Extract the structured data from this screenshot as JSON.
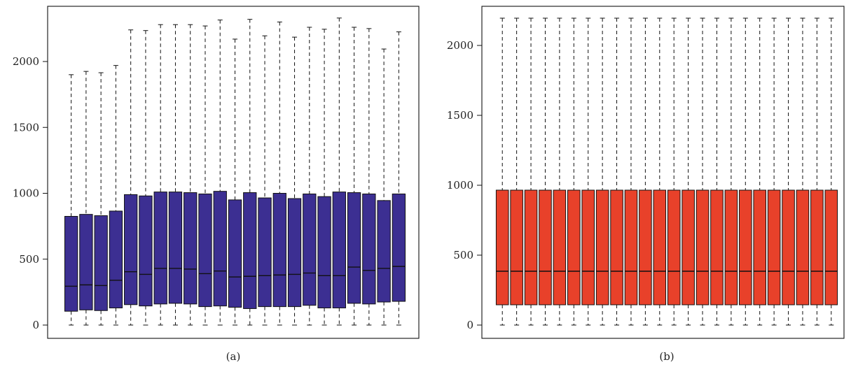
{
  "figure": {
    "panels": [
      {
        "id": "a",
        "caption": "(a)"
      },
      {
        "id": "b",
        "caption": "(b)"
      }
    ]
  },
  "chart_data": [
    {
      "type": "boxplot",
      "panel": "a",
      "caption": "(a)",
      "title": "",
      "xlabel": "",
      "ylabel": "",
      "ylim": [
        0,
        2330
      ],
      "yticks": [
        0,
        500,
        1000,
        1500,
        2000
      ],
      "box_color": "#3c2f92",
      "grid": false,
      "boxes": [
        {
          "min": 0,
          "q1": 105,
          "median": 295,
          "q3": 825,
          "max": 1900
        },
        {
          "min": 0,
          "q1": 115,
          "median": 305,
          "q3": 840,
          "max": 1925
        },
        {
          "min": 0,
          "q1": 110,
          "median": 300,
          "q3": 830,
          "max": 1915
        },
        {
          "min": 0,
          "q1": 130,
          "median": 340,
          "q3": 865,
          "max": 1970
        },
        {
          "min": 0,
          "q1": 155,
          "median": 405,
          "q3": 990,
          "max": 2240
        },
        {
          "min": 0,
          "q1": 145,
          "median": 385,
          "q3": 980,
          "max": 2235
        },
        {
          "min": 0,
          "q1": 160,
          "median": 430,
          "q3": 1010,
          "max": 2280
        },
        {
          "min": 0,
          "q1": 165,
          "median": 430,
          "q3": 1010,
          "max": 2280
        },
        {
          "min": 0,
          "q1": 160,
          "median": 425,
          "q3": 1005,
          "max": 2280
        },
        {
          "min": 0,
          "q1": 140,
          "median": 390,
          "q3": 995,
          "max": 2270
        },
        {
          "min": 0,
          "q1": 145,
          "median": 410,
          "q3": 1015,
          "max": 2315
        },
        {
          "min": 0,
          "q1": 135,
          "median": 365,
          "q3": 950,
          "max": 2170
        },
        {
          "min": 0,
          "q1": 125,
          "median": 370,
          "q3": 1005,
          "max": 2320
        },
        {
          "min": 0,
          "q1": 140,
          "median": 375,
          "q3": 965,
          "max": 2195
        },
        {
          "min": 0,
          "q1": 140,
          "median": 380,
          "q3": 1000,
          "max": 2300
        },
        {
          "min": 0,
          "q1": 140,
          "median": 385,
          "q3": 960,
          "max": 2185
        },
        {
          "min": 0,
          "q1": 150,
          "median": 395,
          "q3": 995,
          "max": 2260
        },
        {
          "min": 0,
          "q1": 130,
          "median": 375,
          "q3": 975,
          "max": 2245
        },
        {
          "min": 0,
          "q1": 130,
          "median": 375,
          "q3": 1010,
          "max": 2330
        },
        {
          "min": 0,
          "q1": 165,
          "median": 440,
          "q3": 1005,
          "max": 2260
        },
        {
          "min": 0,
          "q1": 160,
          "median": 415,
          "q3": 995,
          "max": 2250
        },
        {
          "min": 0,
          "q1": 175,
          "median": 430,
          "q3": 945,
          "max": 2095
        },
        {
          "min": 0,
          "q1": 180,
          "median": 445,
          "q3": 995,
          "max": 2225
        }
      ]
    },
    {
      "type": "boxplot",
      "panel": "b",
      "caption": "(b)",
      "title": "",
      "xlabel": "",
      "ylabel": "",
      "ylim": [
        0,
        2200
      ],
      "yticks": [
        0,
        500,
        1000,
        1500,
        2000
      ],
      "box_color": "#e8412a",
      "grid": false,
      "boxes": [
        {
          "min": 0,
          "q1": 145,
          "median": 385,
          "q3": 965,
          "max": 2195
        },
        {
          "min": 0,
          "q1": 145,
          "median": 385,
          "q3": 965,
          "max": 2195
        },
        {
          "min": 0,
          "q1": 145,
          "median": 385,
          "q3": 965,
          "max": 2195
        },
        {
          "min": 0,
          "q1": 145,
          "median": 385,
          "q3": 965,
          "max": 2195
        },
        {
          "min": 0,
          "q1": 145,
          "median": 385,
          "q3": 965,
          "max": 2195
        },
        {
          "min": 0,
          "q1": 145,
          "median": 385,
          "q3": 965,
          "max": 2195
        },
        {
          "min": 0,
          "q1": 145,
          "median": 385,
          "q3": 965,
          "max": 2195
        },
        {
          "min": 0,
          "q1": 145,
          "median": 385,
          "q3": 965,
          "max": 2195
        },
        {
          "min": 0,
          "q1": 145,
          "median": 385,
          "q3": 965,
          "max": 2195
        },
        {
          "min": 0,
          "q1": 145,
          "median": 385,
          "q3": 965,
          "max": 2195
        },
        {
          "min": 0,
          "q1": 145,
          "median": 385,
          "q3": 965,
          "max": 2195
        },
        {
          "min": 0,
          "q1": 145,
          "median": 385,
          "q3": 965,
          "max": 2195
        },
        {
          "min": 0,
          "q1": 145,
          "median": 385,
          "q3": 965,
          "max": 2195
        },
        {
          "min": 0,
          "q1": 145,
          "median": 385,
          "q3": 965,
          "max": 2195
        },
        {
          "min": 0,
          "q1": 145,
          "median": 385,
          "q3": 965,
          "max": 2195
        },
        {
          "min": 0,
          "q1": 145,
          "median": 385,
          "q3": 965,
          "max": 2195
        },
        {
          "min": 0,
          "q1": 145,
          "median": 385,
          "q3": 965,
          "max": 2195
        },
        {
          "min": 0,
          "q1": 145,
          "median": 385,
          "q3": 965,
          "max": 2195
        },
        {
          "min": 0,
          "q1": 145,
          "median": 385,
          "q3": 965,
          "max": 2195
        },
        {
          "min": 0,
          "q1": 145,
          "median": 385,
          "q3": 965,
          "max": 2195
        },
        {
          "min": 0,
          "q1": 145,
          "median": 385,
          "q3": 965,
          "max": 2195
        },
        {
          "min": 0,
          "q1": 145,
          "median": 385,
          "q3": 965,
          "max": 2195
        },
        {
          "min": 0,
          "q1": 145,
          "median": 385,
          "q3": 965,
          "max": 2195
        },
        {
          "min": 0,
          "q1": 145,
          "median": 385,
          "q3": 965,
          "max": 2195
        }
      ]
    }
  ]
}
